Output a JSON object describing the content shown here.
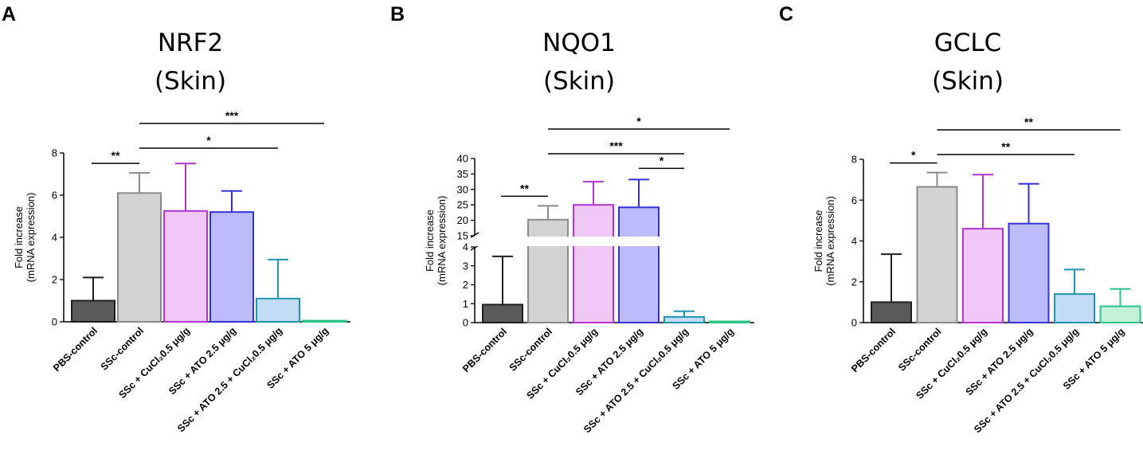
{
  "figure": {
    "panels": [
      {
        "letter": "A",
        "title_line1": "NRF2",
        "title_line2": "(Skin)"
      },
      {
        "letter": "B",
        "title_line1": "NQO1",
        "title_line2": "(Skin)"
      },
      {
        "letter": "C",
        "title_line1": "GCLC",
        "title_line2": "(Skin)"
      }
    ]
  },
  "chart_data": [
    {
      "type": "bar",
      "title": "NRF2 (Skin)",
      "ylabel_line1": "Fold increase",
      "ylabel_line2": "(mRNA expression)",
      "categories": [
        "PBS-control",
        "SSc-control",
        "SSc + CuCl₂0.5 μg/g",
        "SSc + ATO 2.5 μg/g",
        "SSc + ATO 2.5 + CuCl₂0.5 μg/g",
        "SSc + ATO 5 μg/g"
      ],
      "values": [
        1.0,
        6.1,
        5.25,
        5.2,
        1.1,
        0.03
      ],
      "errors": [
        1.1,
        0.95,
        2.25,
        1.0,
        1.85,
        0.0
      ],
      "ylim": [
        0,
        8
      ],
      "yticks": [
        0,
        2,
        4,
        6,
        8
      ],
      "broken_axis": false,
      "significance": [
        {
          "from": 0,
          "to": 1,
          "label": "**"
        },
        {
          "from": 1,
          "to": 4,
          "label": "*"
        },
        {
          "from": 1,
          "to": 5,
          "label": "***"
        }
      ]
    },
    {
      "type": "bar",
      "title": "NQO1 (Skin)",
      "ylabel_line1": "Fold increase",
      "ylabel_line2": "(mRNA expression)",
      "categories": [
        "PBS-control",
        "SSc-control",
        "SSc + CuCl₂0.5 μg/g",
        "SSc + ATO 2.5 μg/g",
        "SSc + ATO 2.5 + CuCl₂0.5 μg/g",
        "SSc + ATO 5 μg/g"
      ],
      "values": [
        0.95,
        20.2,
        25.0,
        24.2,
        0.3,
        0.02
      ],
      "errors": [
        2.55,
        4.5,
        7.5,
        9.0,
        0.3,
        0.0
      ],
      "broken_axis": true,
      "ylim_lower": [
        0,
        4
      ],
      "yticks_lower": [
        0,
        1,
        2,
        3,
        4
      ],
      "ylim_upper": [
        15,
        40
      ],
      "yticks_upper": [
        15,
        20,
        25,
        30,
        35,
        40
      ],
      "significance": [
        {
          "from": 0,
          "to": 1,
          "label": "**"
        },
        {
          "from": 3,
          "to": 4,
          "label": "*"
        },
        {
          "from": 1,
          "to": 4,
          "label": "***"
        },
        {
          "from": 1,
          "to": 5,
          "label": "*"
        }
      ]
    },
    {
      "type": "bar",
      "title": "GCLC (Skin)",
      "ylabel_line1": "Fold increase",
      "ylabel_line2": "(mRNA expression)",
      "categories": [
        "PBS-control",
        "SSc-control",
        "SSc + CuCl₂0.5 μg/g",
        "SSc + ATO 2.5 μg/g",
        "SSc + ATO 2.5 + CuCl₂0.5 μg/g",
        "SSc + ATO 5 μg/g"
      ],
      "values": [
        1.0,
        6.65,
        4.6,
        4.85,
        1.4,
        0.8
      ],
      "errors": [
        2.35,
        0.7,
        2.65,
        1.95,
        1.2,
        0.85
      ],
      "ylim": [
        0,
        8
      ],
      "yticks": [
        0,
        2,
        4,
        6,
        8
      ],
      "broken_axis": false,
      "significance": [
        {
          "from": 0,
          "to": 1,
          "label": "*"
        },
        {
          "from": 1,
          "to": 4,
          "label": "**"
        },
        {
          "from": 1,
          "to": 5,
          "label": "**"
        }
      ]
    }
  ],
  "colors": {
    "fills": [
      "#5a5a5a",
      "#d3d3d3",
      "#efc8f5",
      "#bcbcfa",
      "#c2dcf5",
      "#c3f0d8"
    ],
    "strokes": [
      "#1e1e1e",
      "#8a8a8a",
      "#b235d3",
      "#3232d8",
      "#1f95b0",
      "#2dc48a"
    ]
  }
}
